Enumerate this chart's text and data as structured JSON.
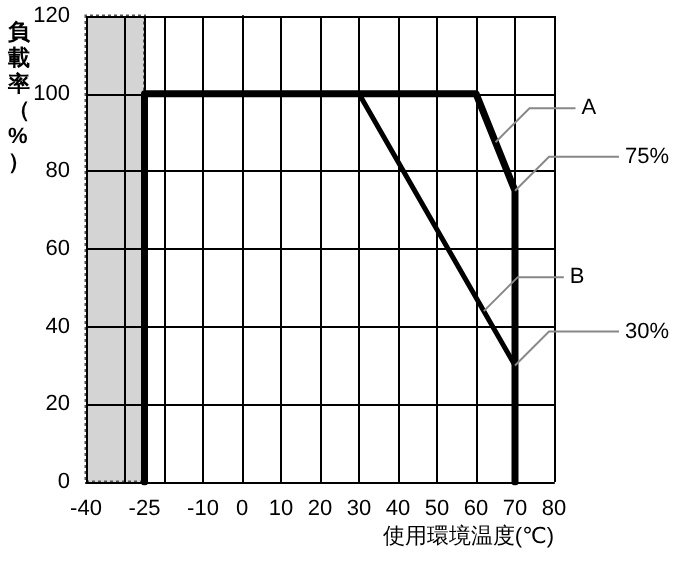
{
  "chart_data": {
    "type": "line",
    "xlabel": "使用環境温度(℃)",
    "ylabel": "負載率（%）",
    "series": [
      {
        "name": "A",
        "color": "#000000",
        "x": [
          -25,
          -25,
          60,
          70,
          70
        ],
        "values": [
          0,
          100,
          100,
          75,
          0
        ]
      },
      {
        "name": "B",
        "color": "#000000",
        "x": [
          30,
          70,
          70
        ],
        "values": [
          100,
          30,
          0
        ]
      }
    ],
    "xlim": [
      -40,
      80
    ],
    "xticks": [
      -40,
      {
        "value": -30,
        "label": null
      },
      -25,
      {
        "value": -20,
        "label": null
      },
      -10,
      0,
      10,
      20,
      30,
      40,
      50,
      60,
      70,
      80
    ],
    "ylim": [
      0,
      120
    ],
    "yticks": [
      0,
      20,
      40,
      60,
      80,
      100,
      120
    ],
    "bands": [
      {
        "axis": "x",
        "from": -40,
        "to": -25,
        "color": "#d4d4d4"
      }
    ],
    "annotations": [
      {
        "text": "75%",
        "x": 70,
        "y": 75
      },
      {
        "text": "30%",
        "x": 70,
        "y": 30
      }
    ],
    "grid": true,
    "legend": false,
    "marker": "none",
    "line_style": "solid"
  }
}
